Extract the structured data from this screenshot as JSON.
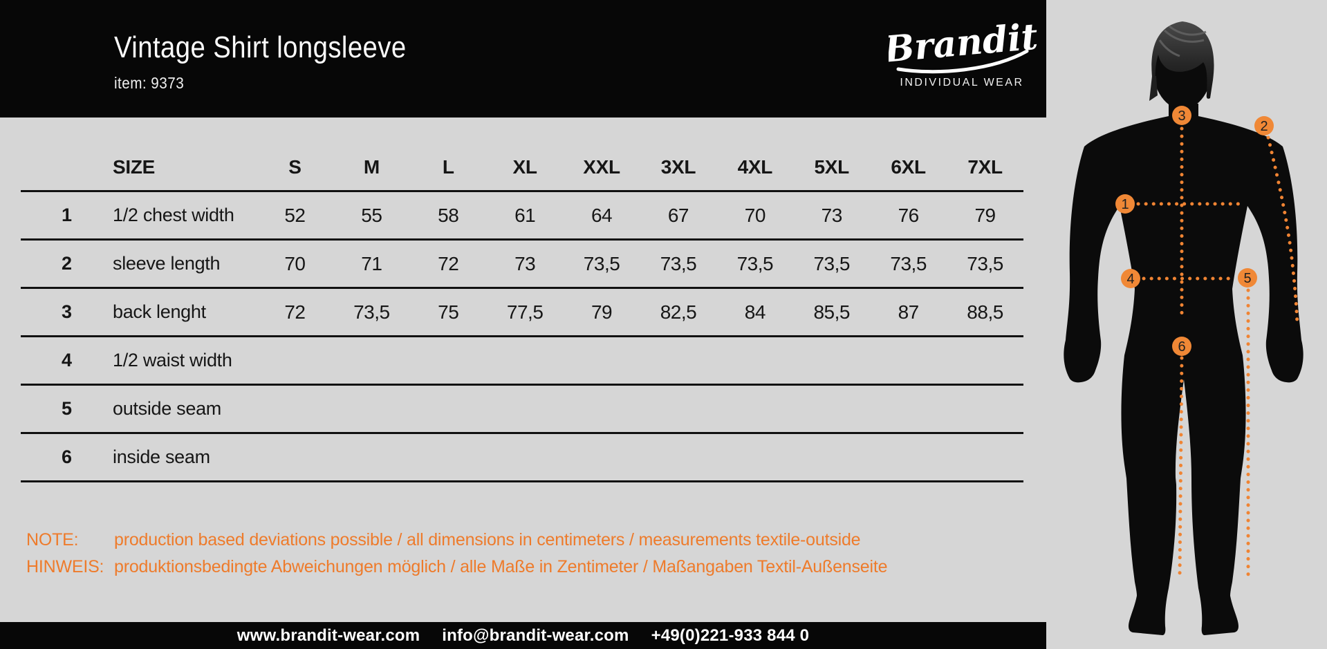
{
  "colors": {
    "background": "#d6d6d6",
    "bar_black": "#070707",
    "accent_orange": "#ee7b2b",
    "marker_orange": "#f08836",
    "text_white": "#ffffff",
    "text_black": "#161616"
  },
  "header": {
    "title": "Vintage Shirt longsleeve",
    "item_label": "item: 9373",
    "brand": {
      "name": "Brandit",
      "tagline": "INDIVIDUAL WEAR"
    }
  },
  "size_table": {
    "size_header": "SIZE",
    "columns": [
      "S",
      "M",
      "L",
      "XL",
      "XXL",
      "3XL",
      "4XL",
      "5XL",
      "6XL",
      "7XL"
    ],
    "rows": [
      {
        "num": "1",
        "label": "1/2 chest width",
        "values": [
          "52",
          "55",
          "58",
          "61",
          "64",
          "67",
          "70",
          "73",
          "76",
          "79"
        ]
      },
      {
        "num": "2",
        "label": "sleeve length",
        "values": [
          "70",
          "71",
          "72",
          "73",
          "73,5",
          "73,5",
          "73,5",
          "73,5",
          "73,5",
          "73,5"
        ]
      },
      {
        "num": "3",
        "label": "back lenght",
        "values": [
          "72",
          "73,5",
          "75",
          "77,5",
          "79",
          "82,5",
          "84",
          "85,5",
          "87",
          "88,5"
        ]
      },
      {
        "num": "4",
        "label": "1/2 waist width",
        "values": [
          "",
          "",
          "",
          "",
          "",
          "",
          "",
          "",
          "",
          ""
        ]
      },
      {
        "num": "5",
        "label": "outside seam",
        "values": [
          "",
          "",
          "",
          "",
          "",
          "",
          "",
          "",
          "",
          ""
        ]
      },
      {
        "num": "6",
        "label": "inside seam",
        "values": [
          "",
          "",
          "",
          "",
          "",
          "",
          "",
          "",
          "",
          ""
        ]
      }
    ]
  },
  "notes": [
    {
      "label": "NOTE:",
      "text": "production based deviations possible / all dimensions in centimeters / measurements textile-outside"
    },
    {
      "label": "HINWEIS:",
      "text": "produktionsbedingte Abweichungen möglich / alle Maße in Zentimeter / Maßangaben Textil-Außenseite"
    }
  ],
  "footer": {
    "website": "www.brandit-wear.com",
    "email": "info@brandit-wear.com",
    "phone": "+49(0)221-933 844 0"
  },
  "figure": {
    "markers": [
      "1",
      "2",
      "3",
      "4",
      "5",
      "6"
    ]
  }
}
